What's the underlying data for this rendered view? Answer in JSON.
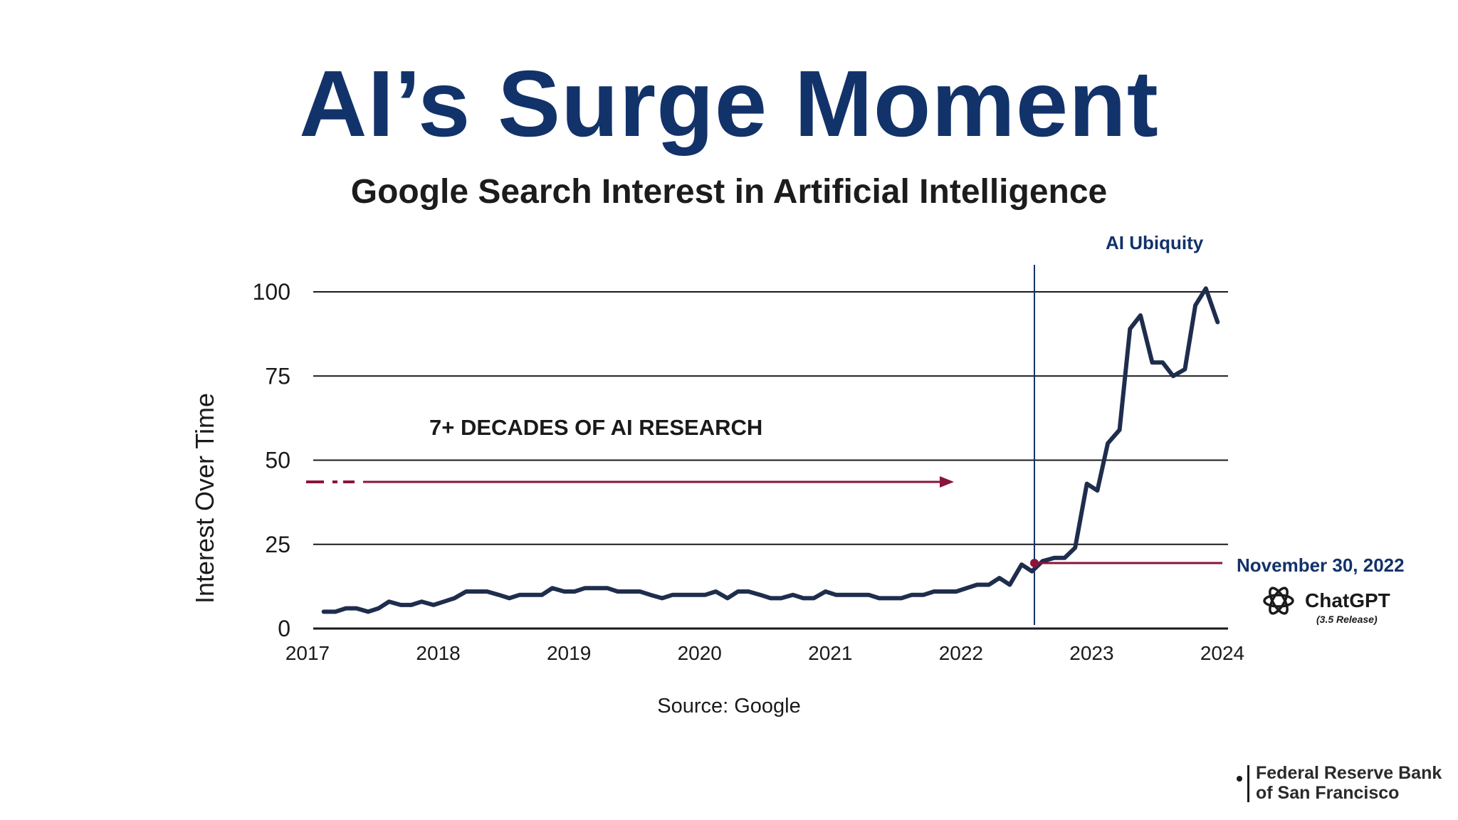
{
  "title": "AI’s Surge Moment",
  "subtitle": "Google Search Interest in Artificial Intelligence",
  "source": "Source: Google",
  "logo": {
    "line1": "Federal Reserve Bank",
    "line2": "of San Francisco"
  },
  "annotations": {
    "research": "7+ DECADES OF AI RESEARCH",
    "ubiquity": "AI Ubiquity",
    "release_date": "November 30, 2022",
    "chatgpt": "ChatGPT",
    "chatgpt_release": "(3.5 Release)"
  },
  "colors": {
    "title": "#12326a",
    "line": "#1f2d4d",
    "accent": "#8a1538",
    "marker_line": "#12326a"
  },
  "chart_data": {
    "type": "line",
    "title": "Google Search Interest in Artificial Intelligence",
    "xlabel": "",
    "ylabel": "Interest Over Time",
    "xlim": [
      2017,
      2024
    ],
    "ylim": [
      0,
      100
    ],
    "x_ticks": [
      2017,
      2018,
      2019,
      2020,
      2021,
      2022,
      2023,
      2024
    ],
    "y_ticks": [
      0,
      25,
      50,
      75,
      100
    ],
    "grid": "horizontal",
    "series": [
      {
        "x": [
          2017.08,
          2017.17,
          2017.25,
          2017.33,
          2017.42,
          2017.5,
          2017.58,
          2017.67,
          2017.75,
          2017.83,
          2017.92,
          2018.0,
          2018.08,
          2018.17,
          2018.25,
          2018.33,
          2018.42,
          2018.5,
          2018.58,
          2018.67,
          2018.75,
          2018.83,
          2018.92,
          2019.0,
          2019.08,
          2019.17,
          2019.25,
          2019.33,
          2019.42,
          2019.5,
          2019.58,
          2019.67,
          2019.75,
          2019.83,
          2019.92,
          2020.0,
          2020.08,
          2020.17,
          2020.25,
          2020.33,
          2020.42,
          2020.5,
          2020.58,
          2020.67,
          2020.75,
          2020.83,
          2020.92,
          2021.0,
          2021.08,
          2021.17,
          2021.25,
          2021.33,
          2021.42,
          2021.5,
          2021.58,
          2021.67,
          2021.75,
          2021.83,
          2021.92,
          2022.0,
          2022.08,
          2022.17,
          2022.25,
          2022.33,
          2022.42,
          2022.5,
          2022.58,
          2022.67,
          2022.75,
          2022.83,
          2022.92,
          2023.0,
          2023.08,
          2023.17,
          2023.25,
          2023.33,
          2023.42,
          2023.5,
          2023.58,
          2023.67,
          2023.75,
          2023.83,
          2023.92
        ],
        "y": [
          5,
          5,
          6,
          6,
          5,
          6,
          8,
          7,
          7,
          8,
          7,
          8,
          9,
          11,
          11,
          11,
          10,
          9,
          10,
          10,
          10,
          12,
          11,
          11,
          12,
          12,
          12,
          11,
          11,
          11,
          10,
          9,
          10,
          10,
          10,
          10,
          11,
          9,
          11,
          11,
          10,
          9,
          9,
          10,
          9,
          9,
          11,
          10,
          10,
          10,
          10,
          9,
          9,
          9,
          10,
          10,
          11,
          11,
          11,
          12,
          13,
          13,
          15,
          13,
          19,
          17,
          20,
          21,
          21,
          24,
          43,
          41,
          55,
          59,
          89,
          93,
          79,
          79,
          75,
          77,
          96,
          101,
          91
        ]
      }
    ],
    "annotations": {
      "release_marker": {
        "x": 2022.67,
        "y": 18,
        "label": "November 30, 2022"
      },
      "ubiquity_line": {
        "x": 2022.67,
        "label": "AI Ubiquity"
      },
      "research_arrow": {
        "y": 42,
        "x_end": 2022.0,
        "label": "7+ DECADES OF AI RESEARCH"
      }
    }
  }
}
